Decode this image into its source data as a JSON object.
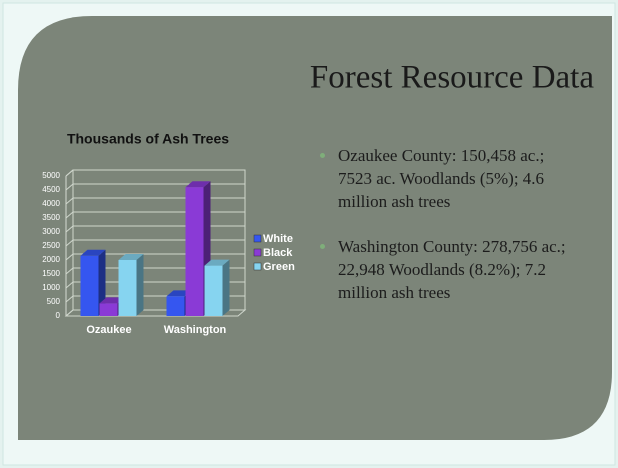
{
  "slide": {
    "title": "Forest Resource Data",
    "bullets": [
      "Ozaukee County: 150,458 ac.; 7523 ac. Woodlands (5%); 4.6 million ash trees",
      "Washington County: 278,756 ac.; 22,948 Woodlands (8.2%); 7.2 million ash trees"
    ]
  },
  "chart_data": {
    "type": "bar3d",
    "title": "Thousands of Ash Trees",
    "categories": [
      "Ozaukee",
      "Washington"
    ],
    "series": [
      {
        "name": "White",
        "color": "#3556f0",
        "values": [
          2150,
          700
        ]
      },
      {
        "name": "Black",
        "color": "#8a3ad6",
        "values": [
          450,
          4600
        ]
      },
      {
        "name": "Green",
        "color": "#86d4f0",
        "values": [
          2000,
          1800
        ]
      }
    ],
    "ylim": [
      0,
      5000
    ],
    "yticks": [
      0,
      500,
      1000,
      1500,
      2000,
      2500,
      3000,
      3500,
      4000,
      4500,
      5000
    ],
    "grid": true,
    "legend": "right"
  }
}
